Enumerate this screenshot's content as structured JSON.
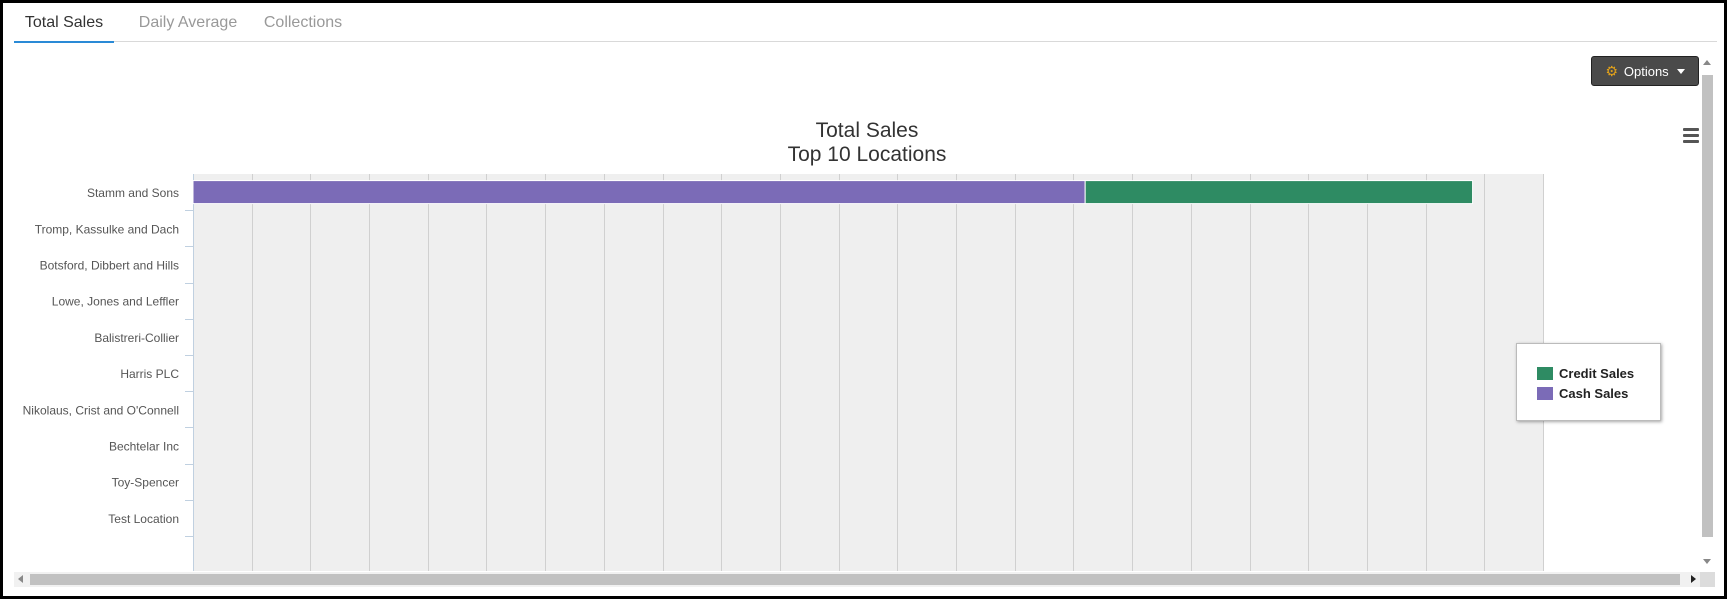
{
  "tabs": [
    {
      "label": "Total Sales",
      "active": true
    },
    {
      "label": "Daily Average",
      "active": false
    },
    {
      "label": "Collections",
      "active": false
    }
  ],
  "toolbar": {
    "options_label": "Options",
    "options_icon": "gears-icon",
    "menu_icon": "hamburger-icon"
  },
  "colors": {
    "credit": "#2e8b63",
    "cash": "#7b6bb7",
    "plot_bg": "#efefef",
    "tab_accent": "#2a8ad6"
  },
  "chart_data": {
    "type": "bar",
    "orientation": "horizontal",
    "stacked": true,
    "title": "Total Sales",
    "subtitle": "Top 10 Locations",
    "categories": [
      "Stamm and Sons",
      "Tromp, Kassulke and Dach",
      "Botsford, Dibbert and Hills",
      "Lowe, Jones and Leffler",
      "Balistreri-Collier",
      "Harris PLC",
      "Nikolaus, Crist and O'Connell",
      "Bechtelar Inc",
      "Toy-Spencer",
      "Test Location"
    ],
    "series": [
      {
        "name": "Credit Sales",
        "color": "#2e8b63",
        "values": [
          6.6,
          0,
          0,
          0,
          0,
          0,
          0,
          0,
          0,
          0
        ]
      },
      {
        "name": "Cash Sales",
        "color": "#7b6bb7",
        "values": [
          15.2,
          0,
          0,
          0,
          0,
          0,
          0,
          0,
          0,
          0
        ]
      }
    ],
    "xlim": [
      0,
      23
    ],
    "grid": true,
    "legend_position": "right"
  }
}
